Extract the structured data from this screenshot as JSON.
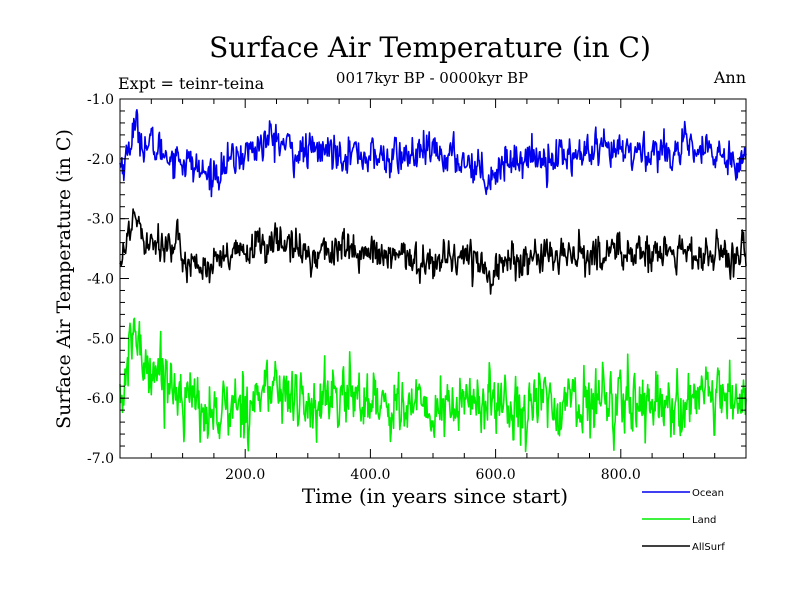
{
  "chart_data": {
    "type": "line",
    "title": "Surface Air Temperature (in C)",
    "subtitle": "0017kyr BP - 0000kyr BP",
    "left_annotation": "Expt = teinr-teina",
    "right_annotation": "Ann",
    "xlabel": "Time (in years since start)",
    "ylabel": "Surface Air Temperature (in C)",
    "xlim": [
      0,
      1000
    ],
    "ylim": [
      -7.0,
      -1.0
    ],
    "x_ticks": [
      200,
      400,
      600,
      800
    ],
    "x_tick_labels": [
      "200.0",
      "400.0",
      "600.0",
      "800.0"
    ],
    "y_ticks": [
      -1.0,
      -2.0,
      -3.0,
      -4.0,
      -5.0,
      -6.0,
      -7.0
    ],
    "y_tick_labels": [
      "-1.0",
      "-2.0",
      "-3.0",
      "-4.0",
      "-5.0",
      "-6.0",
      "-7.0"
    ],
    "legend_position": "bottom-right",
    "series": [
      {
        "name": "Ocean",
        "color": "#0000ee",
        "noise": 0.14,
        "anchors": [
          [
            0,
            -2.1
          ],
          [
            10,
            -2.0
          ],
          [
            22,
            -1.45
          ],
          [
            40,
            -1.75
          ],
          [
            60,
            -1.85
          ],
          [
            100,
            -2.0
          ],
          [
            140,
            -2.3
          ],
          [
            170,
            -2.1
          ],
          [
            200,
            -1.9
          ],
          [
            245,
            -1.65
          ],
          [
            280,
            -1.9
          ],
          [
            350,
            -1.85
          ],
          [
            420,
            -2.0
          ],
          [
            500,
            -1.9
          ],
          [
            560,
            -2.05
          ],
          [
            590,
            -2.3
          ],
          [
            620,
            -2.0
          ],
          [
            700,
            -1.95
          ],
          [
            800,
            -1.9
          ],
          [
            900,
            -1.85
          ],
          [
            1000,
            -2.0
          ]
        ]
      },
      {
        "name": "Land",
        "color": "#00ee00",
        "noise": 0.24,
        "anchors": [
          [
            0,
            -6.0
          ],
          [
            10,
            -5.8
          ],
          [
            22,
            -4.75
          ],
          [
            35,
            -5.4
          ],
          [
            55,
            -5.45
          ],
          [
            80,
            -5.7
          ],
          [
            120,
            -6.1
          ],
          [
            150,
            -6.3
          ],
          [
            200,
            -6.05
          ],
          [
            245,
            -5.8
          ],
          [
            300,
            -6.15
          ],
          [
            360,
            -5.95
          ],
          [
            420,
            -6.05
          ],
          [
            500,
            -6.25
          ],
          [
            560,
            -6.05
          ],
          [
            600,
            -6.1
          ],
          [
            700,
            -6.1
          ],
          [
            800,
            -6.0
          ],
          [
            900,
            -6.1
          ],
          [
            1000,
            -6.05
          ]
        ]
      },
      {
        "name": "AllSurf",
        "color": "#000000",
        "noise": 0.14,
        "anchors": [
          [
            0,
            -3.6
          ],
          [
            10,
            -3.5
          ],
          [
            22,
            -2.85
          ],
          [
            40,
            -3.3
          ],
          [
            60,
            -3.35
          ],
          [
            100,
            -3.6
          ],
          [
            140,
            -3.85
          ],
          [
            170,
            -3.7
          ],
          [
            200,
            -3.55
          ],
          [
            245,
            -3.35
          ],
          [
            300,
            -3.6
          ],
          [
            350,
            -3.5
          ],
          [
            420,
            -3.65
          ],
          [
            500,
            -3.7
          ],
          [
            560,
            -3.6
          ],
          [
            590,
            -3.9
          ],
          [
            620,
            -3.7
          ],
          [
            700,
            -3.65
          ],
          [
            800,
            -3.55
          ],
          [
            900,
            -3.6
          ],
          [
            1000,
            -3.65
          ]
        ]
      }
    ]
  }
}
